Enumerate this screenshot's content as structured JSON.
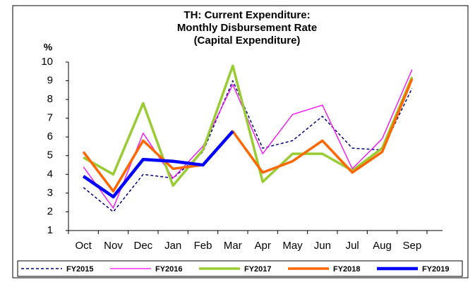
{
  "chart_data": {
    "type": "line",
    "title": [
      "TH: Current Expenditure:",
      "Monthly Disbursement Rate",
      "(Capital Expenditure)"
    ],
    "y_label": "%",
    "categories": [
      "Oct",
      "Nov",
      "Dec",
      "Jan",
      "Feb",
      "Mar",
      "Apr",
      "May",
      "Jun",
      "Jul",
      "Aug",
      "Sep"
    ],
    "ylim": [
      1,
      10
    ],
    "yticks": [
      1,
      2,
      3,
      4,
      5,
      6,
      7,
      8,
      9,
      10
    ],
    "grid": false,
    "legend": "bottom",
    "series": [
      {
        "name": "FY2015",
        "color": "#000080",
        "dashed": true,
        "values": [
          3.3,
          2.0,
          4.0,
          3.8,
          5.2,
          9.0,
          5.4,
          5.8,
          7.1,
          5.4,
          5.3,
          8.6
        ]
      },
      {
        "name": "FY2016",
        "color": "#ff00ff",
        "values": [
          4.4,
          2.2,
          6.2,
          3.8,
          5.5,
          8.8,
          5.1,
          7.2,
          7.7,
          4.3,
          5.9,
          9.6
        ]
      },
      {
        "name": "FY2017",
        "color": "#99cc33",
        "values": [
          4.9,
          4.0,
          7.8,
          3.4,
          5.3,
          9.8,
          3.6,
          5.1,
          5.1,
          4.2,
          5.4,
          9.2
        ]
      },
      {
        "name": "FY2018",
        "color": "#ff6600",
        "values": [
          5.2,
          3.1,
          5.8,
          4.3,
          4.5,
          6.3,
          4.1,
          4.7,
          5.8,
          4.1,
          5.2,
          9.1
        ]
      },
      {
        "name": "FY2019",
        "color": "#0000ff",
        "values": [
          3.9,
          2.8,
          4.8,
          4.7,
          4.5,
          6.3,
          null,
          null,
          null,
          null,
          null,
          null
        ]
      }
    ]
  }
}
